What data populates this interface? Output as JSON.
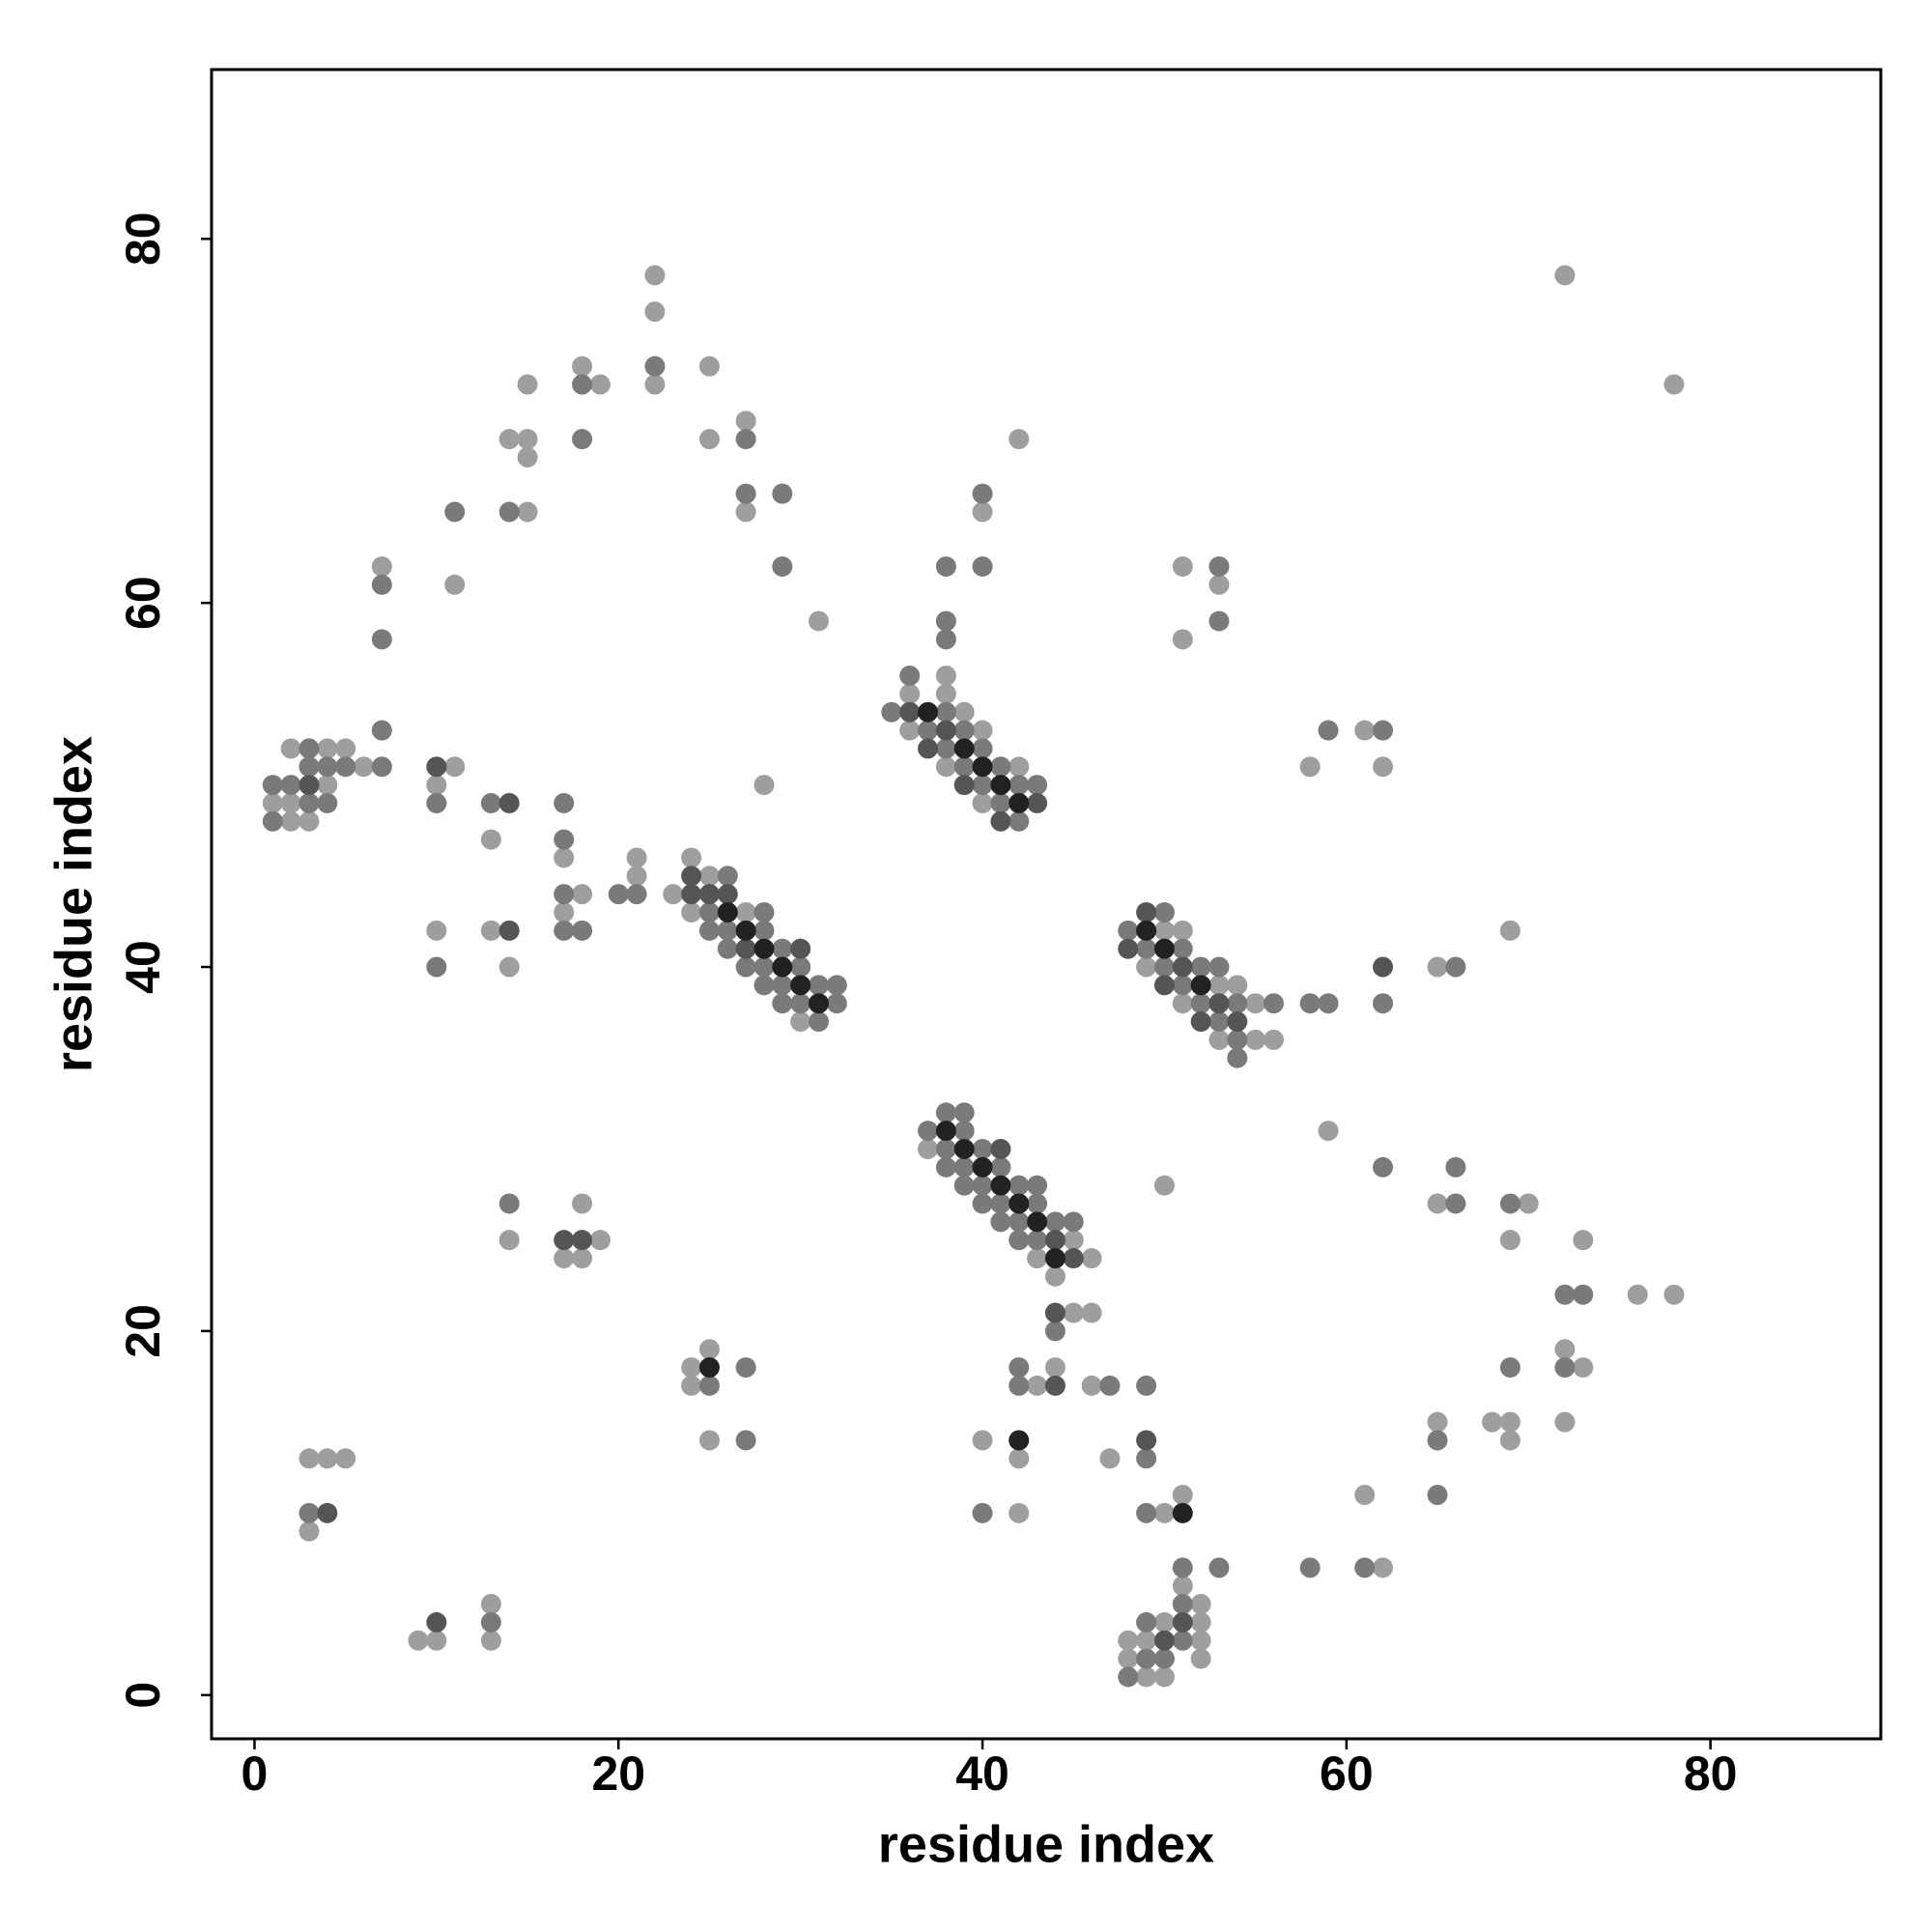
{
  "chart_data": {
    "type": "scatter",
    "xlabel": "residue index",
    "ylabel": "residue index",
    "xlim": [
      -2.36,
      89.36
    ],
    "ylim": [
      -2.4,
      89.3
    ],
    "xticks": [
      0,
      20,
      40,
      60,
      80
    ],
    "yticks": [
      0,
      20,
      40,
      60,
      80
    ],
    "series": [
      {
        "color": "#9e9e9e",
        "x": [
          22,
          22,
          22,
          18,
          19,
          25,
          15,
          14,
          15,
          15,
          25,
          27,
          15,
          27,
          7,
          11,
          31,
          42,
          40,
          51,
          53,
          51,
          72,
          78,
          2,
          4,
          5,
          6,
          4,
          1,
          2,
          2,
          3,
          11,
          10,
          13,
          17,
          18,
          17,
          13,
          10,
          14,
          21,
          21,
          28,
          23,
          24,
          24,
          25,
          27,
          30,
          36,
          36,
          38,
          38,
          38,
          39,
          40,
          40,
          42,
          49,
          50,
          51,
          51,
          53,
          53,
          54,
          55,
          55,
          56,
          58,
          61,
          62,
          65,
          69,
          37,
          43,
          44,
          45,
          46,
          45,
          46,
          59,
          65,
          70,
          50,
          69,
          73,
          76,
          78,
          72,
          73,
          65,
          68,
          69,
          69,
          72,
          61,
          62,
          14,
          19,
          17,
          18,
          18,
          25,
          24,
          24,
          25,
          44,
          43,
          46,
          40,
          42,
          47,
          42,
          50,
          51,
          3,
          4,
          5,
          3,
          9,
          10,
          13,
          13,
          51,
          52,
          50,
          52,
          48,
          49,
          52,
          48,
          52,
          49,
          50
        ],
        "y": [
          78,
          76,
          72,
          73,
          72,
          73,
          72,
          69,
          69,
          68,
          69,
          70,
          65,
          65,
          62,
          61,
          59,
          69,
          65,
          62,
          61,
          58,
          78,
          72,
          52,
          52,
          52,
          51,
          50,
          49,
          49,
          48,
          48,
          51,
          50,
          47,
          46,
          44,
          43,
          42,
          42,
          40,
          45,
          46,
          50,
          44,
          46,
          43,
          45,
          43,
          37,
          55,
          53,
          56,
          55,
          51,
          54,
          53,
          49,
          51,
          40,
          42,
          42,
          38,
          39,
          36,
          39,
          38,
          36,
          36,
          51,
          53,
          51,
          40,
          42,
          30,
          24,
          23,
          25,
          24,
          21,
          21,
          31,
          27,
          27,
          28,
          25,
          25,
          22,
          22,
          19,
          18,
          15,
          15,
          15,
          14,
          15,
          11,
          7,
          25,
          25,
          24,
          24,
          27,
          19,
          18,
          17,
          14,
          18,
          17,
          17,
          14,
          13,
          13,
          10,
          10,
          11,
          13,
          13,
          13,
          9,
          3,
          3,
          5,
          3,
          6,
          5,
          4,
          4,
          3,
          3,
          3,
          2,
          2,
          1,
          1
        ]
      },
      {
        "color": "#7a7a7a",
        "x": [
          22,
          18,
          18,
          27,
          11,
          14,
          27,
          29,
          7,
          29,
          7,
          40,
          38,
          40,
          38,
          38,
          53,
          53,
          7,
          3,
          3,
          4,
          5,
          7,
          1,
          2,
          3,
          4,
          1,
          10,
          13,
          17,
          17,
          17,
          17,
          18,
          10,
          20,
          21,
          25,
          25,
          26,
          26,
          26,
          27,
          28,
          28,
          28,
          28,
          29,
          29,
          29,
          30,
          30,
          31,
          31,
          32,
          32,
          35,
          36,
          37,
          38,
          38,
          39,
          39,
          40,
          40,
          41,
          41,
          42,
          42,
          43,
          48,
          49,
          50,
          50,
          51,
          51,
          52,
          52,
          53,
          53,
          54,
          54,
          54,
          56,
          58,
          59,
          59,
          62,
          62,
          66,
          37,
          38,
          38,
          38,
          39,
          39,
          39,
          39,
          40,
          40,
          40,
          41,
          41,
          41,
          42,
          42,
          42,
          43,
          43,
          43,
          44,
          45,
          44,
          62,
          66,
          66,
          69,
          72,
          73,
          72,
          69,
          65,
          65,
          58,
          61,
          14,
          25,
          27,
          27,
          42,
          42,
          47,
          49,
          49,
          40,
          49,
          3,
          13,
          51,
          53,
          51,
          49,
          51,
          49,
          50,
          48
        ],
        "y": [
          73,
          72,
          69,
          69,
          65,
          65,
          66,
          66,
          61,
          62,
          58,
          66,
          62,
          62,
          59,
          58,
          62,
          59,
          53,
          52,
          51,
          51,
          51,
          51,
          50,
          50,
          49,
          49,
          48,
          49,
          49,
          49,
          47,
          44,
          42,
          42,
          40,
          44,
          44,
          43,
          42,
          45,
          42,
          41,
          40,
          43,
          42,
          40,
          39,
          41,
          39,
          38,
          40,
          38,
          39,
          37,
          39,
          38,
          54,
          56,
          53,
          54,
          52,
          53,
          51,
          52,
          50,
          51,
          49,
          50,
          48,
          50,
          42,
          41,
          43,
          40,
          41,
          39,
          40,
          38,
          40,
          37,
          38,
          36,
          35,
          38,
          38,
          38,
          53,
          53,
          38,
          40,
          31,
          32,
          30,
          29,
          32,
          31,
          29,
          28,
          30,
          28,
          27,
          29,
          27,
          26,
          28,
          26,
          25,
          28,
          27,
          25,
          26,
          26,
          20,
          29,
          29,
          27,
          27,
          22,
          22,
          18,
          18,
          14,
          11,
          7,
          7,
          27,
          17,
          18,
          14,
          18,
          17,
          17,
          17,
          13,
          10,
          10,
          10,
          4,
          7,
          7,
          5,
          4,
          3,
          2,
          2,
          1
        ]
      },
      {
        "color": "#555555",
        "x": [
          3,
          10,
          14,
          14,
          24,
          24,
          25,
          26,
          27,
          30,
          36,
          37,
          38,
          39,
          41,
          43,
          48,
          49,
          50,
          51,
          52,
          53,
          54,
          62,
          41,
          44,
          45,
          44,
          17,
          18,
          44,
          49,
          4,
          10,
          51,
          50
        ],
        "y": [
          50,
          51,
          49,
          42,
          45,
          44,
          44,
          44,
          41,
          41,
          54,
          52,
          53,
          50,
          48,
          49,
          41,
          43,
          39,
          40,
          37,
          38,
          37,
          40,
          30,
          25,
          24,
          21,
          25,
          25,
          17,
          14,
          10,
          4,
          4,
          3
        ]
      },
      {
        "color": "#222222",
        "x": [
          26,
          27,
          28,
          29,
          30,
          31,
          37,
          39,
          40,
          41,
          42,
          49,
          50,
          52,
          38,
          39,
          40,
          41,
          42,
          43,
          44,
          25,
          42,
          51
        ],
        "y": [
          43,
          42,
          41,
          40,
          39,
          38,
          54,
          52,
          51,
          50,
          49,
          42,
          41,
          39,
          31,
          30,
          29,
          28,
          27,
          26,
          24,
          18,
          14,
          10
        ]
      }
    ]
  }
}
